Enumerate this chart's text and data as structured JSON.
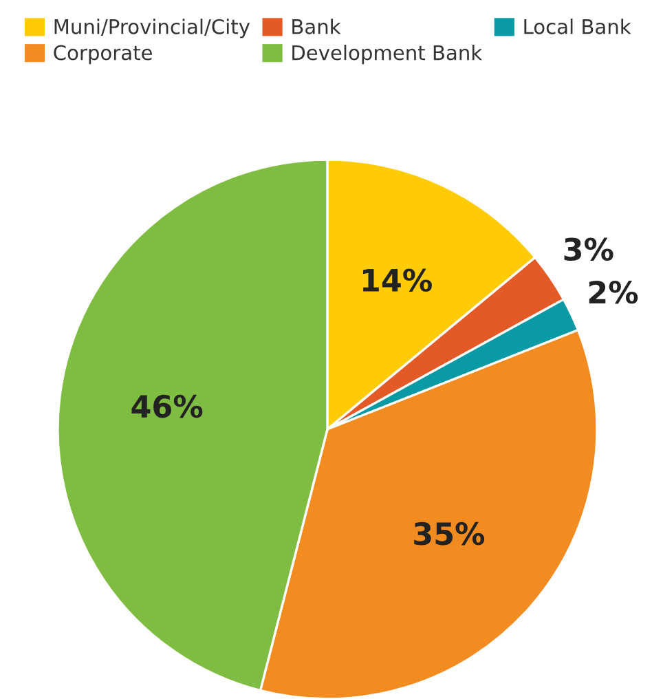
{
  "chart_data": {
    "type": "pie",
    "categories": [
      "Muni/Provincial/City",
      "Bank",
      "Local Bank",
      "Corporate",
      "Development Bank"
    ],
    "values": [
      14,
      3,
      2,
      35,
      46
    ],
    "colors": [
      "#ffcb05",
      "#e35a26",
      "#0a9aa6",
      "#f28b20",
      "#7fbc42"
    ],
    "value_labels": [
      "14%",
      "3%",
      "2%",
      "35%",
      "46%"
    ],
    "legend": "top"
  }
}
